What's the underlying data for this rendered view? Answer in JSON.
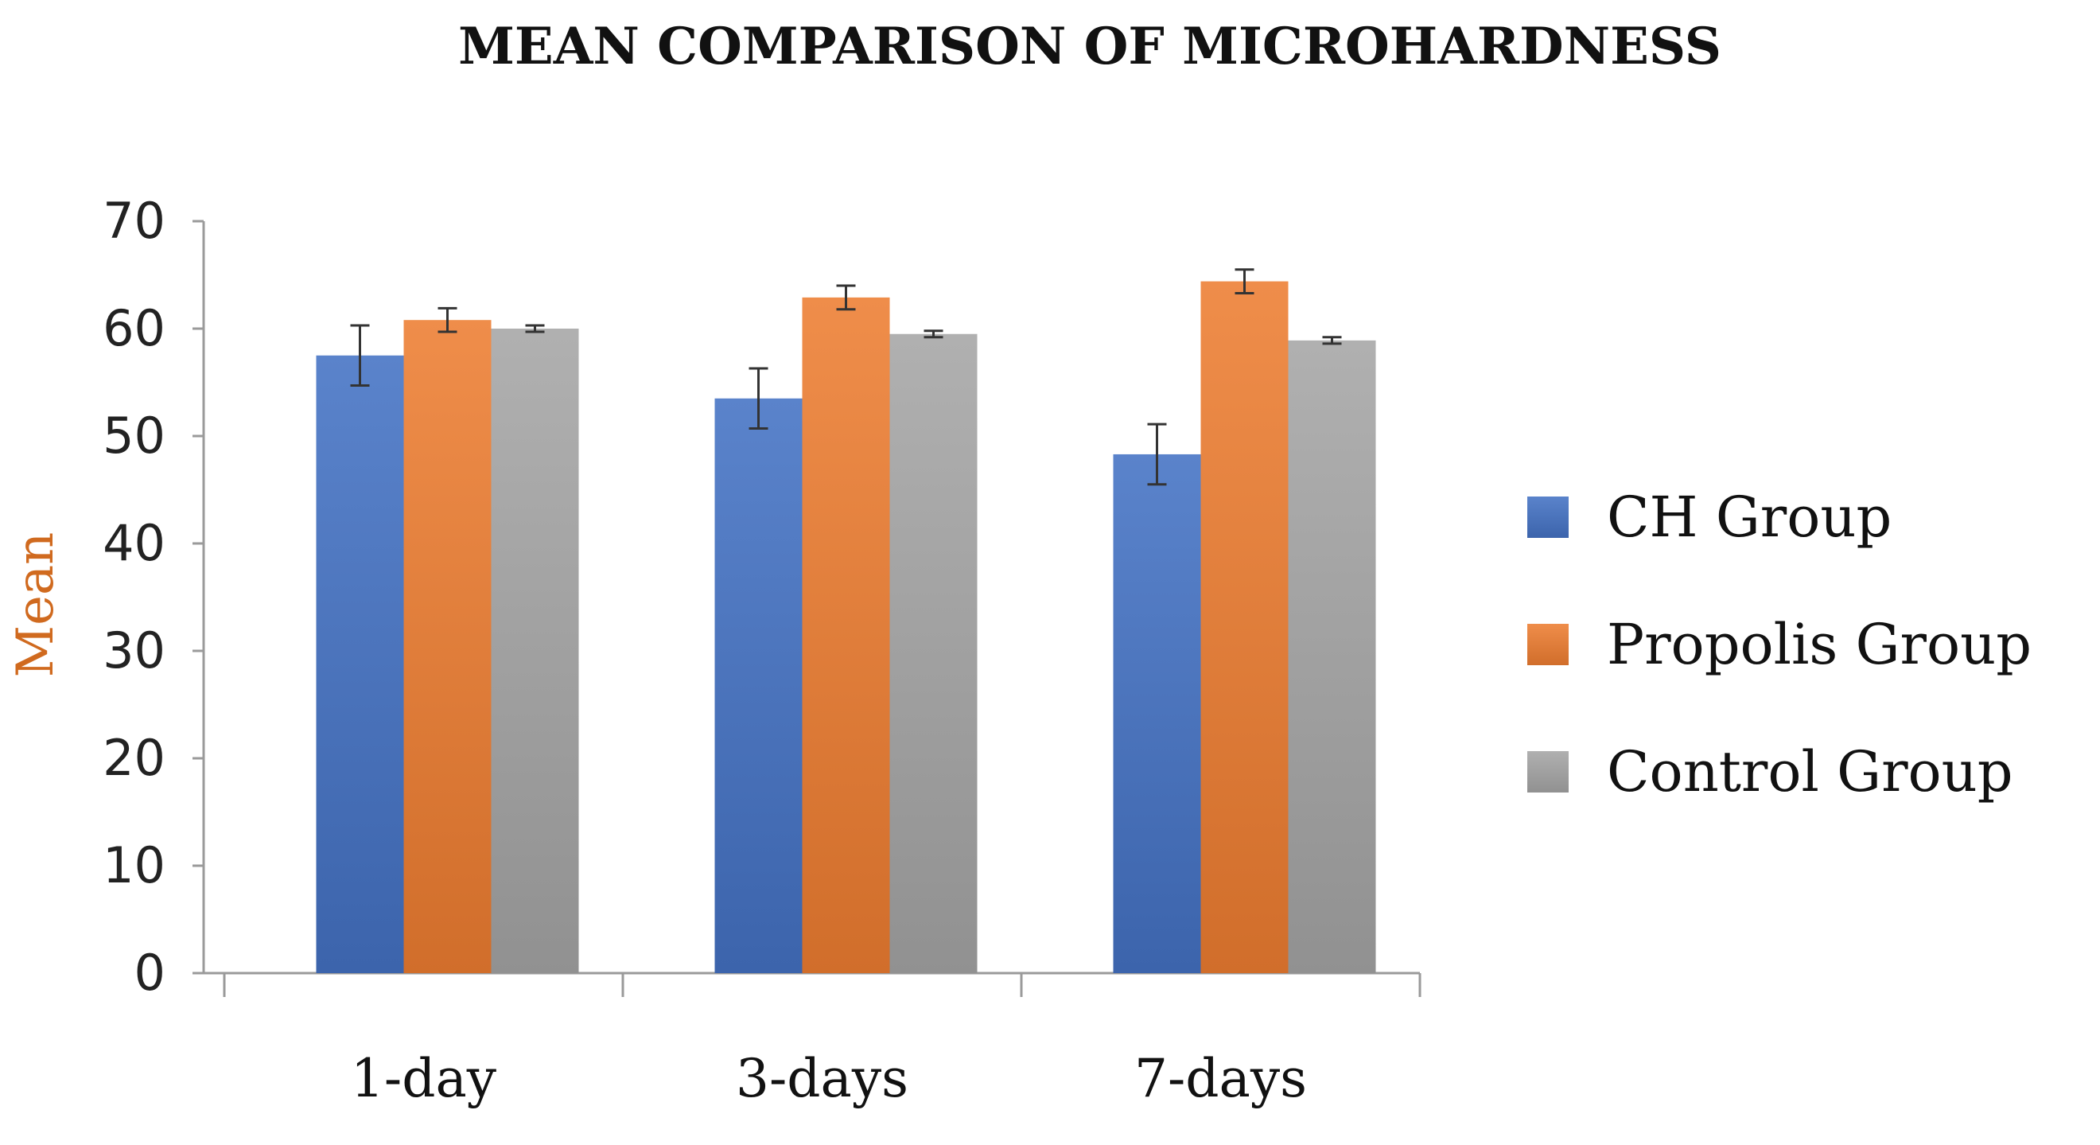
{
  "chart_data": {
    "type": "bar",
    "title": "MEAN COMPARISON OF MICROHARDNESS",
    "xlabel": "",
    "ylabel": "Mean",
    "ylim": [
      0,
      70
    ],
    "yticks": [
      0,
      10,
      20,
      30,
      40,
      50,
      60,
      70
    ],
    "categories": [
      "1-day",
      "3-days",
      "7-days"
    ],
    "series": [
      {
        "name": "CH Group",
        "color": "#4472c4",
        "values": [
          57.5,
          53.5,
          48.3
        ],
        "errors": [
          2.8,
          2.8,
          2.8
        ]
      },
      {
        "name": "Propolis Group",
        "color": "#ed7d31",
        "values": [
          60.8,
          62.9,
          64.4
        ],
        "errors": [
          1.1,
          1.1,
          1.1
        ]
      },
      {
        "name": "Control Group",
        "color": "#a5a5a5",
        "values": [
          60.0,
          59.5,
          58.9
        ],
        "errors": [
          0.3,
          0.3,
          0.3
        ]
      }
    ],
    "legend_position": "right",
    "grid": false
  }
}
